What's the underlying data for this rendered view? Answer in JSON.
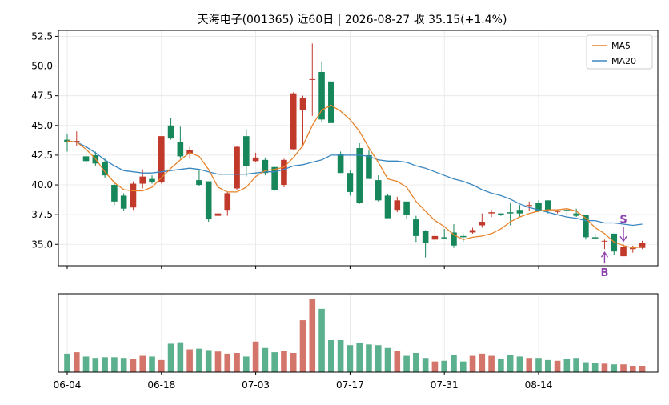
{
  "chart_data": {
    "type": "candlestick",
    "title": "天海电子(001365) 近60日  |  2026-08-27 收 35.15(+1.4%)",
    "ylim": [
      33.2,
      53.0
    ],
    "yticks": [
      "35.0",
      "37.5",
      "40.0",
      "42.5",
      "45.0",
      "47.5",
      "50.0",
      "52.5"
    ],
    "ytick_values": [
      35.0,
      37.5,
      40.0,
      42.5,
      45.0,
      47.5,
      50.0,
      52.5
    ],
    "xtick_labels": [
      "06-04",
      "06-18",
      "07-03",
      "07-17",
      "07-31",
      "08-14"
    ],
    "xtick_index": [
      0,
      10,
      20,
      30,
      40,
      50
    ],
    "grid": true,
    "legend": {
      "position": "top-right",
      "entries": [
        {
          "name": "MA5",
          "color": "#e8822a"
        },
        {
          "name": "MA20",
          "color": "#3a87c0"
        }
      ]
    },
    "colors": {
      "up": "#c0392b",
      "down": "#16875a",
      "up_vol": "#d4756b",
      "down_vol": "#5bb08e"
    },
    "markers": [
      {
        "label": "S",
        "index": 59,
        "kind": "sell"
      },
      {
        "label": "B",
        "index": 57,
        "kind": "buy"
      }
    ],
    "ohlc": [
      [
        43.8,
        44.3,
        42.8,
        43.6
      ],
      [
        43.6,
        44.5,
        43.3,
        43.7
      ],
      [
        42.4,
        42.8,
        41.6,
        42.0
      ],
      [
        42.5,
        42.8,
        41.6,
        41.8
      ],
      [
        41.9,
        42.2,
        40.6,
        40.8
      ],
      [
        40.0,
        40.3,
        38.3,
        38.6
      ],
      [
        39.1,
        39.3,
        37.8,
        38.0
      ],
      [
        38.1,
        40.3,
        37.9,
        40.1
      ],
      [
        40.1,
        41.3,
        39.7,
        40.7
      ],
      [
        40.5,
        40.8,
        40.1,
        40.2
      ],
      [
        40.2,
        44.1,
        40.1,
        44.1
      ],
      [
        45.0,
        45.6,
        43.8,
        43.9
      ],
      [
        43.6,
        44.9,
        42.2,
        42.4
      ],
      [
        42.6,
        43.2,
        42.2,
        42.9
      ],
      [
        40.4,
        41.3,
        39.9,
        40.0
      ],
      [
        40.3,
        40.3,
        36.9,
        37.1
      ],
      [
        37.4,
        37.8,
        36.9,
        37.6
      ],
      [
        37.9,
        39.4,
        37.4,
        39.3
      ],
      [
        39.7,
        43.3,
        39.6,
        43.2
      ],
      [
        44.1,
        44.7,
        40.7,
        41.6
      ],
      [
        42.0,
        42.7,
        41.9,
        42.3
      ],
      [
        42.1,
        42.3,
        40.8,
        41.0
      ],
      [
        41.5,
        41.5,
        39.5,
        39.6
      ],
      [
        40.0,
        42.2,
        39.8,
        42.1
      ],
      [
        43.0,
        47.8,
        42.9,
        47.7
      ],
      [
        46.3,
        47.5,
        43.2,
        47.3
      ],
      [
        48.9,
        51.9,
        45.8,
        48.9
      ],
      [
        49.5,
        50.4,
        45.3,
        45.5
      ],
      [
        48.7,
        48.7,
        45.3,
        45.2
      ],
      [
        42.6,
        42.8,
        41.0,
        41.0
      ],
      [
        41.0,
        41.2,
        39.1,
        39.4
      ],
      [
        43.1,
        43.5,
        38.4,
        38.5
      ],
      [
        42.5,
        42.9,
        40.5,
        40.5
      ],
      [
        40.4,
        40.8,
        38.6,
        38.7
      ],
      [
        39.1,
        39.2,
        37.2,
        37.2
      ],
      [
        37.9,
        39.0,
        37.7,
        38.7
      ],
      [
        38.6,
        38.6,
        37.1,
        37.5
      ],
      [
        37.1,
        37.4,
        35.2,
        35.7
      ],
      [
        36.1,
        36.2,
        33.9,
        35.1
      ],
      [
        35.4,
        36.6,
        35.1,
        35.7
      ],
      [
        35.6,
        36.3,
        35.5,
        35.5
      ],
      [
        36.0,
        36.7,
        34.7,
        34.9
      ],
      [
        35.7,
        35.9,
        35.2,
        35.6
      ],
      [
        36.0,
        36.4,
        35.9,
        36.2
      ],
      [
        36.6,
        37.6,
        36.4,
        36.9
      ],
      [
        37.6,
        37.9,
        37.3,
        37.7
      ],
      [
        37.6,
        37.6,
        37.4,
        37.5
      ],
      [
        37.7,
        38.5,
        36.6,
        37.6
      ],
      [
        37.9,
        38.3,
        37.3,
        37.6
      ],
      [
        38.3,
        38.6,
        37.8,
        38.3
      ],
      [
        38.5,
        38.7,
        37.7,
        37.8
      ],
      [
        38.7,
        38.7,
        37.6,
        37.9
      ],
      [
        37.8,
        37.9,
        37.6,
        37.8
      ],
      [
        37.9,
        38.0,
        37.4,
        37.8
      ],
      [
        37.6,
        38.0,
        37.3,
        37.4
      ],
      [
        37.5,
        37.5,
        35.4,
        35.6
      ],
      [
        35.6,
        35.9,
        35.4,
        35.5
      ],
      [
        35.3,
        35.4,
        34.6,
        35.3
      ],
      [
        35.9,
        35.9,
        34.1,
        34.4
      ],
      [
        34.0,
        35.0,
        34.0,
        34.8
      ],
      [
        34.6,
        34.9,
        34.3,
        34.7
      ],
      [
        34.7,
        35.3,
        34.6,
        35.15
      ]
    ],
    "ma5": [
      43.7,
      43.6,
      43.0,
      42.2,
      41.1,
      40.2,
      39.6,
      39.5,
      39.5,
      39.8,
      40.6,
      41.4,
      42.1,
      42.7,
      42.4,
      41.3,
      39.8,
      39.4,
      39.4,
      39.8,
      40.7,
      41.2,
      41.3,
      41.5,
      42.3,
      43.3,
      45.0,
      46.3,
      46.7,
      46.2,
      45.5,
      44.5,
      43.1,
      41.9,
      40.5,
      40.3,
      39.8,
      38.6,
      37.8,
      37.0,
      36.5,
      35.8,
      35.4,
      35.6,
      35.7,
      35.9,
      36.3,
      36.9,
      37.3,
      37.6,
      37.8,
      37.9,
      37.9,
      38.0,
      37.8,
      37.2,
      36.4,
      35.9,
      35.2,
      34.9,
      34.7,
      34.8
    ],
    "ma20": [
      43.7,
      43.6,
      43.2,
      42.7,
      42.1,
      41.6,
      41.2,
      41.1,
      41.0,
      41.0,
      41.1,
      41.2,
      41.3,
      41.4,
      41.3,
      41.1,
      40.9,
      40.9,
      40.9,
      40.9,
      41.0,
      41.1,
      41.1,
      41.3,
      41.6,
      41.7,
      41.9,
      42.1,
      42.5,
      42.5,
      42.5,
      42.5,
      42.4,
      42.1,
      42.0,
      42.0,
      41.9,
      41.6,
      41.4,
      41.1,
      40.8,
      40.5,
      40.3,
      40.0,
      39.6,
      39.3,
      39.1,
      38.8,
      38.4,
      38.1,
      37.9,
      37.7,
      37.5,
      37.3,
      37.2,
      37.0,
      37.0,
      36.8,
      36.8,
      36.7,
      36.6,
      36.7
    ],
    "volume": [
      2.6,
      2.8,
      2.2,
      2.0,
      2.1,
      2.1,
      2.0,
      1.8,
      2.3,
      2.2,
      1.7,
      4.0,
      4.2,
      3.2,
      3.3,
      3.1,
      2.9,
      2.6,
      2.7,
      2.2,
      4.3,
      3.4,
      2.8,
      3.0,
      2.7,
      7.3,
      10.3,
      8.9,
      4.5,
      4.5,
      3.8,
      4.1,
      3.9,
      3.8,
      3.4,
      3.0,
      2.3,
      2.7,
      2.0,
      1.5,
      1.6,
      2.4,
      1.5,
      2.3,
      2.6,
      2.3,
      1.8,
      2.4,
      2.2,
      2.0,
      2.0,
      1.7,
      1.6,
      1.8,
      2.0,
      1.4,
      1.3,
      1.2,
      1.1,
      1.1,
      0.9,
      0.9
    ]
  }
}
